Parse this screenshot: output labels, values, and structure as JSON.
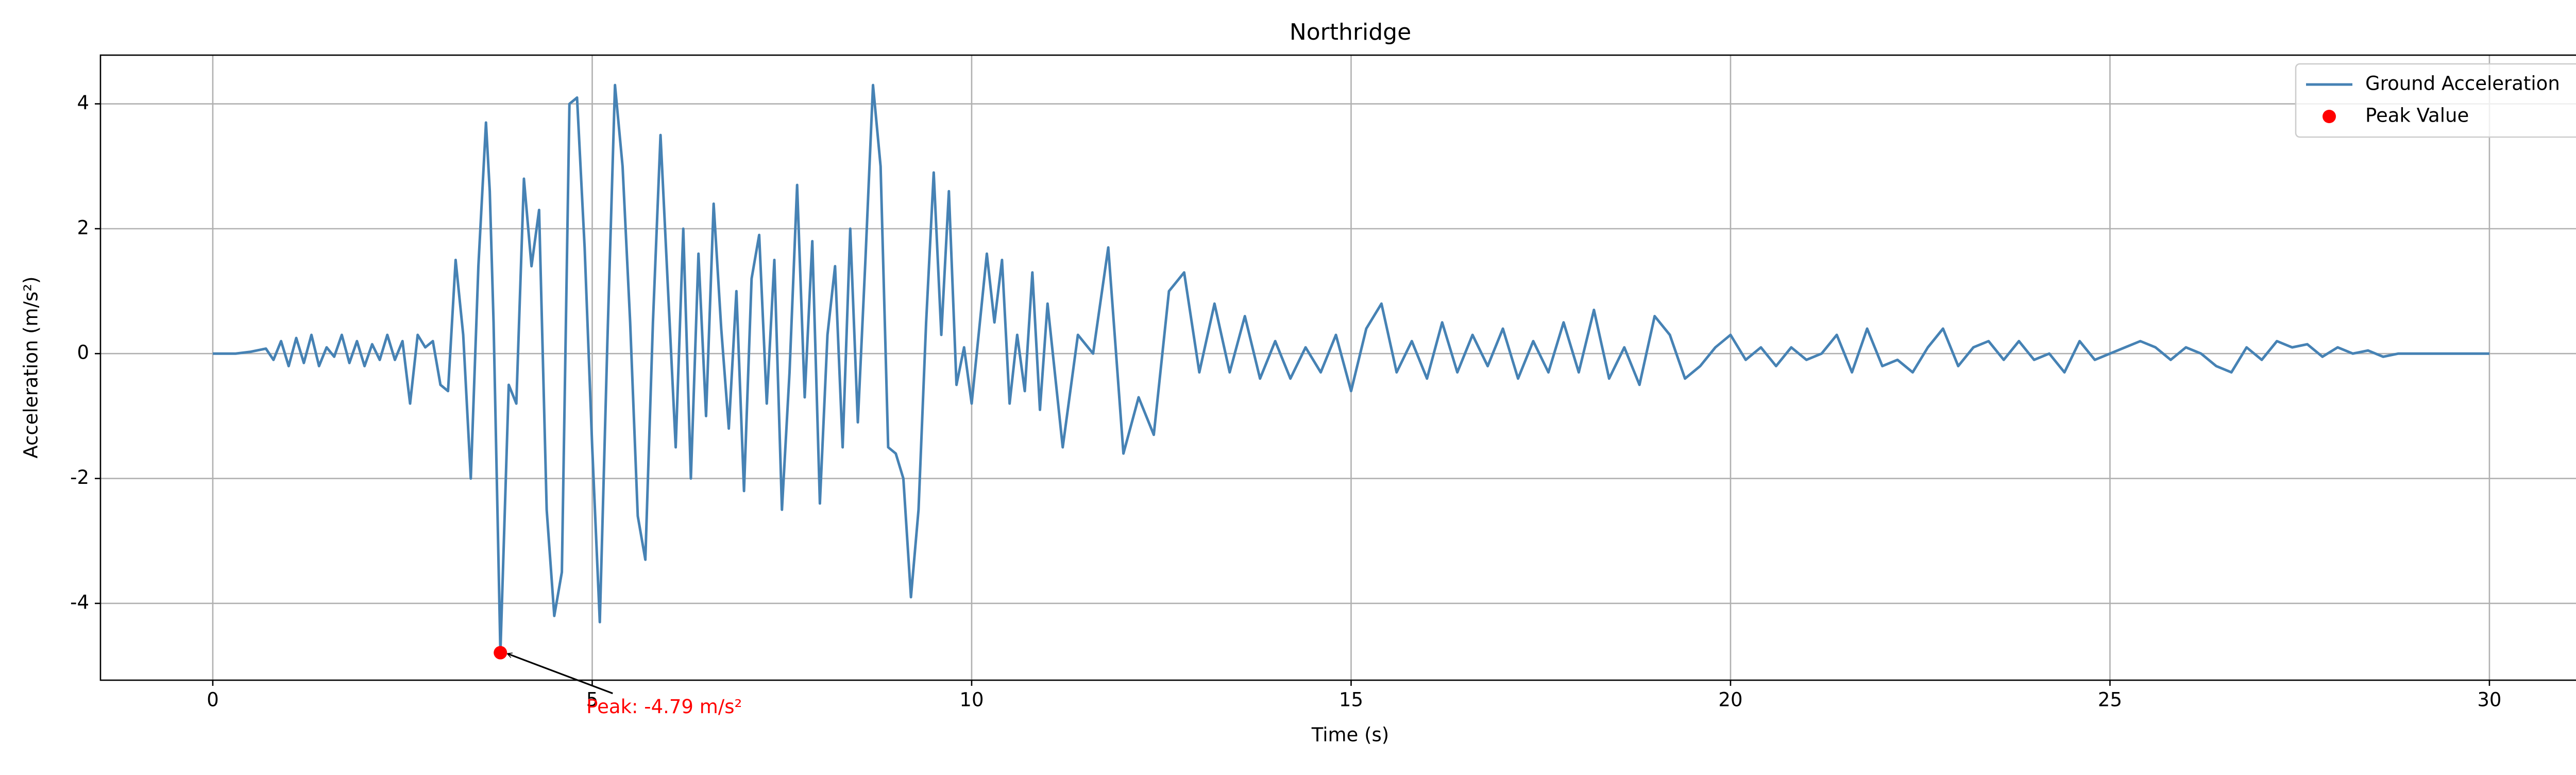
{
  "chart_data": {
    "type": "line",
    "title": "Northridge",
    "xlabel": "Time (s)",
    "ylabel": "Acceleration (m/s²)",
    "xlim": [
      -1.48,
      31.46
    ],
    "ylim": [
      -5.23,
      4.78
    ],
    "xticks": [
      0,
      5,
      10,
      15,
      20,
      25,
      30
    ],
    "yticks": [
      -4,
      -2,
      0,
      2,
      4
    ],
    "grid": true,
    "legend": "upper right",
    "series": [
      {
        "name": "Ground Acceleration",
        "color": "#4682b4",
        "type": "line",
        "x": [
          0,
          0.3,
          0.5,
          0.7,
          0.8,
          0.9,
          1.0,
          1.1,
          1.2,
          1.3,
          1.4,
          1.5,
          1.6,
          1.7,
          1.8,
          1.9,
          2.0,
          2.1,
          2.2,
          2.3,
          2.4,
          2.5,
          2.6,
          2.7,
          2.8,
          2.9,
          3.0,
          3.1,
          3.2,
          3.3,
          3.4,
          3.5,
          3.6,
          3.65,
          3.7,
          3.79,
          3.9,
          4.0,
          4.1,
          4.2,
          4.3,
          4.4,
          4.5,
          4.6,
          4.7,
          4.8,
          4.9,
          5.0,
          5.1,
          5.2,
          5.3,
          5.4,
          5.5,
          5.6,
          5.7,
          5.8,
          5.9,
          6.0,
          6.1,
          6.2,
          6.3,
          6.4,
          6.5,
          6.6,
          6.7,
          6.8,
          6.9,
          7.0,
          7.1,
          7.2,
          7.3,
          7.4,
          7.5,
          7.6,
          7.7,
          7.8,
          7.9,
          8.0,
          8.1,
          8.2,
          8.3,
          8.4,
          8.5,
          8.6,
          8.7,
          8.8,
          8.9,
          9.0,
          9.1,
          9.2,
          9.3,
          9.4,
          9.5,
          9.6,
          9.7,
          9.8,
          9.9,
          10.0,
          10.2,
          10.3,
          10.4,
          10.5,
          10.6,
          10.7,
          10.8,
          10.9,
          11.0,
          11.2,
          11.4,
          11.6,
          11.8,
          12.0,
          12.2,
          12.4,
          12.6,
          12.8,
          13.0,
          13.2,
          13.4,
          13.6,
          13.8,
          14.0,
          14.2,
          14.4,
          14.6,
          14.8,
          15.0,
          15.2,
          15.4,
          15.6,
          15.8,
          16.0,
          16.2,
          16.4,
          16.6,
          16.8,
          17.0,
          17.2,
          17.4,
          17.6,
          17.8,
          18.0,
          18.2,
          18.4,
          18.6,
          18.8,
          19.0,
          19.2,
          19.4,
          19.6,
          19.8,
          20.0,
          20.2,
          20.4,
          20.6,
          20.8,
          21.0,
          21.2,
          21.4,
          21.6,
          21.8,
          22.0,
          22.2,
          22.4,
          22.6,
          22.8,
          23.0,
          23.2,
          23.4,
          23.6,
          23.8,
          24.0,
          24.2,
          24.4,
          24.6,
          24.8,
          25.0,
          25.2,
          25.4,
          25.6,
          25.8,
          26.0,
          26.2,
          26.4,
          26.6,
          26.8,
          27.0,
          27.2,
          27.4,
          27.6,
          27.8,
          28.0,
          28.2,
          28.4,
          28.6,
          28.8,
          29.0,
          29.5,
          30
        ],
        "values": [
          0,
          0,
          0.03,
          0.08,
          -0.1,
          0.2,
          -0.2,
          0.25,
          -0.15,
          0.3,
          -0.2,
          0.1,
          -0.05,
          0.3,
          -0.15,
          0.2,
          -0.2,
          0.15,
          -0.1,
          0.3,
          -0.1,
          0.2,
          -0.8,
          0.3,
          0.1,
          0.2,
          -0.5,
          -0.6,
          1.5,
          0.3,
          -2.0,
          1.4,
          3.7,
          2.6,
          0.5,
          -4.79,
          -0.5,
          -0.8,
          2.8,
          1.4,
          2.3,
          -2.5,
          -4.2,
          -3.5,
          4.0,
          4.1,
          1.7,
          -1.5,
          -4.3,
          0.2,
          4.3,
          3.0,
          0.5,
          -2.6,
          -3.3,
          0.5,
          3.5,
          1.0,
          -1.5,
          2.0,
          -2.0,
          1.6,
          -1.0,
          2.4,
          0.4,
          -1.2,
          1.0,
          -2.2,
          1.2,
          1.9,
          -0.8,
          1.5,
          -2.5,
          -0.3,
          2.7,
          -0.7,
          1.8,
          -2.4,
          0.3,
          1.4,
          -1.5,
          2.0,
          -1.1,
          1.5,
          4.3,
          3.0,
          -1.5,
          -1.6,
          -2.0,
          -3.9,
          -2.5,
          0.5,
          2.9,
          0.3,
          2.6,
          -0.5,
          0.1,
          -0.8,
          1.6,
          0.5,
          1.5,
          -0.8,
          0.3,
          -0.6,
          1.3,
          -0.9,
          0.8,
          -1.5,
          0.3,
          0.0,
          1.7,
          -1.6,
          -0.7,
          -1.3,
          1.0,
          1.3,
          -0.3,
          0.8,
          -0.3,
          0.6,
          -0.4,
          0.2,
          -0.4,
          0.1,
          -0.3,
          0.3,
          -0.6,
          0.4,
          0.8,
          -0.3,
          0.2,
          -0.4,
          0.5,
          -0.3,
          0.3,
          -0.2,
          0.4,
          -0.4,
          0.2,
          -0.3,
          0.5,
          -0.3,
          0.7,
          -0.4,
          0.1,
          -0.5,
          0.6,
          0.3,
          -0.4,
          -0.2,
          0.1,
          0.3,
          -0.1,
          0.1,
          -0.2,
          0.1,
          -0.1,
          0.0,
          0.3,
          -0.3,
          0.4,
          -0.2,
          -0.1,
          -0.3,
          0.1,
          0.4,
          -0.2,
          0.1,
          0.2,
          -0.1,
          0.2,
          -0.1,
          0.0,
          -0.3,
          0.2,
          -0.1,
          0.0,
          0.1,
          0.2,
          0.1,
          -0.1,
          0.1,
          0.0,
          -0.2,
          -0.3,
          0.1,
          -0.1,
          0.2,
          0.1,
          0.15,
          -0.05,
          0.1,
          0.0,
          0.05,
          -0.05,
          0.0,
          0.0,
          0.0,
          0
        ]
      },
      {
        "name": "Peak Value",
        "color": "#ff0000",
        "type": "scatter",
        "x": [
          3.79
        ],
        "values": [
          -4.79
        ]
      }
    ],
    "annotation": {
      "text": "Peak: -4.79 m/s²",
      "color": "#ff0000"
    }
  }
}
